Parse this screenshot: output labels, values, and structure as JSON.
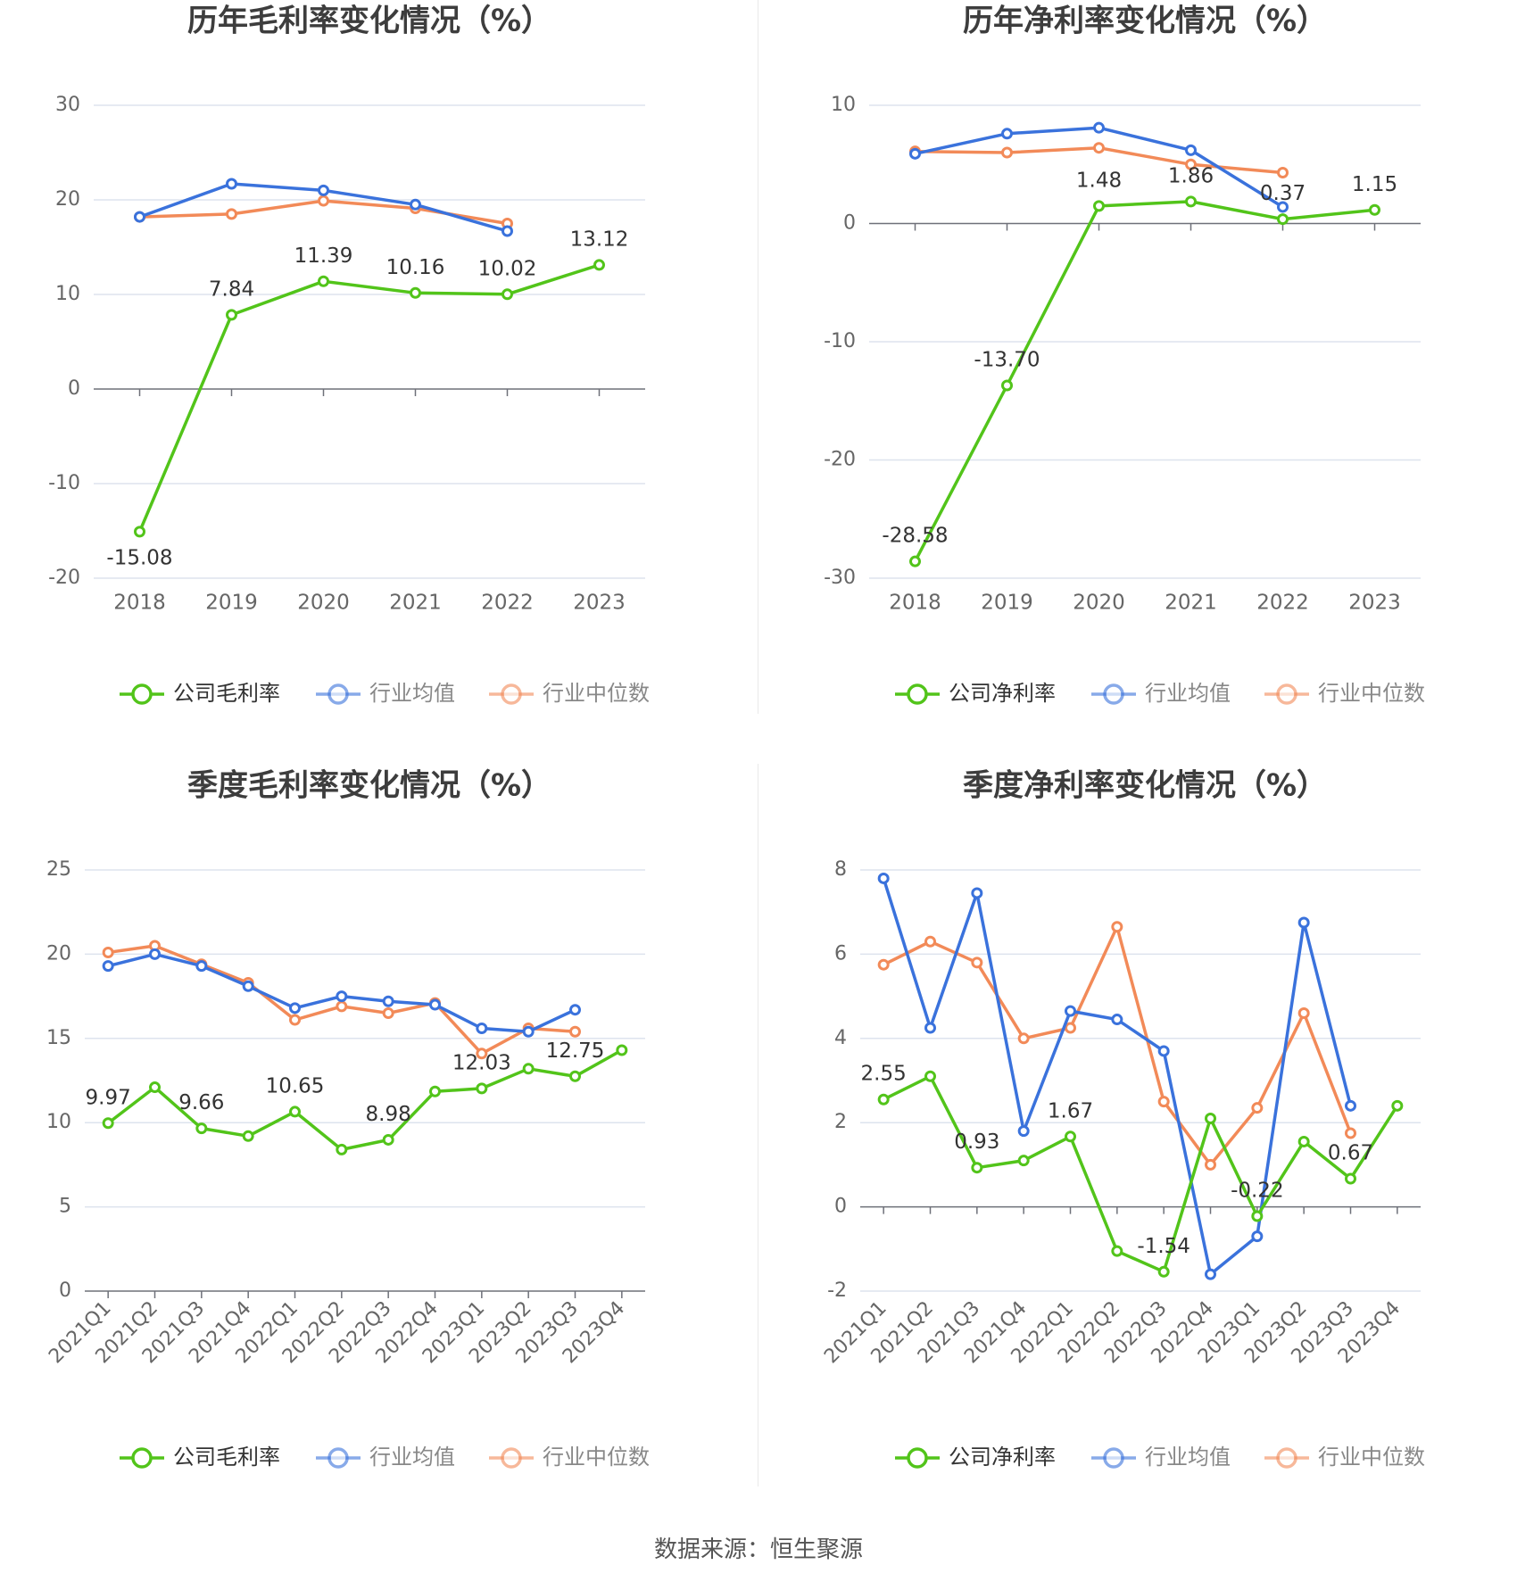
{
  "colors": {
    "company": "#52c41a",
    "industry_avg": "#3a72dc",
    "industry_median": "#f28a58",
    "grid": "#dde3ee",
    "axis": "#666666",
    "label": "#333333",
    "title": "#3d3d3d"
  },
  "source": "数据来源：恒生聚源",
  "chart_data": [
    {
      "type": "line",
      "title": "历年毛利率变化情况（%）",
      "categories": [
        "2018",
        "2019",
        "2020",
        "2021",
        "2022",
        "2023"
      ],
      "ylim": [
        -20,
        30
      ],
      "yticks": [
        -20,
        -10,
        0,
        10,
        20,
        30
      ],
      "series": [
        {
          "name": "公司毛利率",
          "key": "company",
          "values": [
            -15.08,
            7.84,
            11.39,
            10.16,
            10.02,
            13.12
          ],
          "labels": [
            "-15.08",
            "7.84",
            "11.39",
            "10.16",
            "10.02",
            "13.12"
          ],
          "label_pos": [
            "below",
            "above",
            "above",
            "above",
            "above",
            "above"
          ]
        },
        {
          "name": "行业均值",
          "key": "industry_avg",
          "values": [
            18.2,
            21.7,
            21.0,
            19.5,
            16.7,
            null
          ]
        },
        {
          "name": "行业中位数",
          "key": "industry_median",
          "values": [
            18.2,
            18.5,
            19.9,
            19.1,
            17.5,
            null
          ]
        }
      ]
    },
    {
      "type": "line",
      "title": "历年净利率变化情况（%）",
      "categories": [
        "2018",
        "2019",
        "2020",
        "2021",
        "2022",
        "2023"
      ],
      "ylim": [
        -30,
        10
      ],
      "yticks": [
        -30,
        -20,
        -10,
        0,
        10
      ],
      "series": [
        {
          "name": "公司净利率",
          "key": "company",
          "values": [
            -28.58,
            -13.7,
            1.48,
            1.86,
            0.37,
            1.15
          ],
          "labels": [
            "-28.58",
            "-13.70",
            "1.48",
            "1.86",
            "0.37",
            "1.15"
          ],
          "label_pos": [
            "above",
            "above",
            "above",
            "above",
            "above",
            "above"
          ]
        },
        {
          "name": "行业均值",
          "key": "industry_avg",
          "values": [
            5.9,
            7.6,
            8.1,
            6.2,
            1.4,
            null
          ]
        },
        {
          "name": "行业中位数",
          "key": "industry_median",
          "values": [
            6.1,
            6.0,
            6.4,
            5.0,
            4.3,
            null
          ]
        }
      ]
    },
    {
      "type": "line",
      "title": "季度毛利率变化情况（%）",
      "categories": [
        "2021Q1",
        "2021Q2",
        "2021Q3",
        "2021Q4",
        "2022Q1",
        "2022Q2",
        "2022Q3",
        "2022Q4",
        "2023Q1",
        "2023Q2",
        "2023Q3",
        "2023Q4"
      ],
      "ylim": [
        0,
        25
      ],
      "yticks": [
        0,
        5,
        10,
        15,
        20,
        25
      ],
      "series": [
        {
          "name": "公司毛利率",
          "key": "company",
          "values": [
            9.97,
            12.1,
            9.66,
            9.2,
            10.65,
            8.4,
            8.98,
            11.85,
            12.03,
            13.2,
            12.75,
            14.3
          ],
          "labels": [
            "9.97",
            "",
            "9.66",
            "",
            "10.65",
            "",
            "8.98",
            "",
            "12.03",
            "",
            "12.75",
            ""
          ],
          "label_pos": [
            "above",
            "above",
            "above",
            "above",
            "above",
            "above",
            "above",
            "above",
            "above",
            "above",
            "above",
            "above"
          ]
        },
        {
          "name": "行业均值",
          "key": "industry_avg",
          "values": [
            19.3,
            20.0,
            19.3,
            18.1,
            16.8,
            17.5,
            17.2,
            17.0,
            15.6,
            15.4,
            16.7,
            null
          ]
        },
        {
          "name": "行业中位数",
          "key": "industry_median",
          "values": [
            20.1,
            20.5,
            19.4,
            18.3,
            16.1,
            16.9,
            16.5,
            17.1,
            14.1,
            15.6,
            15.4,
            null
          ]
        }
      ]
    },
    {
      "type": "line",
      "title": "季度净利率变化情况（%）",
      "categories": [
        "2021Q1",
        "2021Q2",
        "2021Q3",
        "2021Q4",
        "2022Q1",
        "2022Q2",
        "2022Q3",
        "2022Q4",
        "2023Q1",
        "2023Q2",
        "2023Q3",
        "2023Q4"
      ],
      "ylim": [
        -2,
        8
      ],
      "yticks": [
        -2,
        0,
        2,
        4,
        6,
        8
      ],
      "series": [
        {
          "name": "公司净利率",
          "key": "company",
          "values": [
            2.55,
            3.1,
            0.93,
            1.1,
            1.67,
            -1.05,
            -1.54,
            2.1,
            -0.22,
            1.55,
            0.67,
            2.4
          ],
          "labels": [
            "2.55",
            "",
            "0.93",
            "",
            "1.67",
            "",
            "-1.54",
            "",
            "-0.22",
            "",
            "0.67",
            ""
          ],
          "label_pos": [
            "above",
            "above",
            "above",
            "above",
            "above",
            "above",
            "above",
            "above",
            "above",
            "above",
            "above",
            "above"
          ]
        },
        {
          "name": "行业均值",
          "key": "industry_avg",
          "values": [
            7.8,
            4.25,
            7.45,
            1.8,
            4.65,
            4.45,
            3.7,
            -1.6,
            -0.7,
            6.75,
            2.4,
            null
          ]
        },
        {
          "name": "行业中位数",
          "key": "industry_median",
          "values": [
            5.75,
            6.3,
            5.8,
            4.0,
            4.25,
            6.65,
            2.5,
            1.0,
            2.35,
            4.6,
            1.75,
            null
          ]
        }
      ]
    }
  ]
}
